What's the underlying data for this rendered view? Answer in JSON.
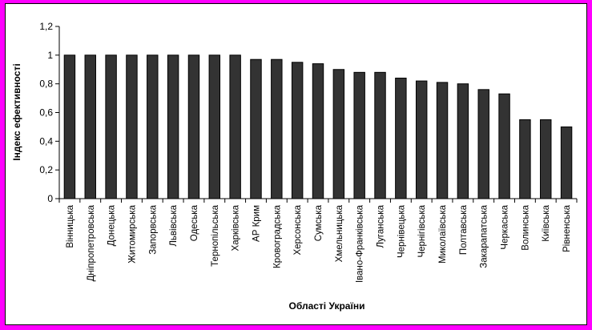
{
  "chart_data": {
    "type": "bar",
    "xlabel": "Області України",
    "ylabel": "Індекс ефективності",
    "ylim": [
      0,
      1.2
    ],
    "yticks": [
      "0",
      "0,2",
      "0,4",
      "0,6",
      "0,8",
      "1",
      "1,2"
    ],
    "grid": false,
    "legend": "none",
    "bar_color": "#333333",
    "categories": [
      "Вінницька",
      "Дніпропетровська",
      "Донецька",
      "Житомирська",
      "Запорвська",
      "Львівська",
      "Одеська",
      "Тернопільська",
      "Харківська",
      "АР Крим",
      "Кровоградська",
      "Херсонська",
      "Сумська",
      "Хмельницька",
      "Івано-Франківська",
      "Луганська",
      "Чернівецька",
      "Чернігівська",
      "Миколаївська",
      "Полтавська",
      "Закарапатська",
      "Черкаська",
      "Волинська",
      "Київська",
      "Рівненська"
    ],
    "values": [
      1,
      1,
      1,
      1,
      1,
      1,
      1,
      1,
      1,
      0.97,
      0.97,
      0.95,
      0.94,
      0.9,
      0.88,
      0.88,
      0.84,
      0.82,
      0.81,
      0.8,
      0.76,
      0.73,
      0.55,
      0.55,
      0.5
    ]
  }
}
